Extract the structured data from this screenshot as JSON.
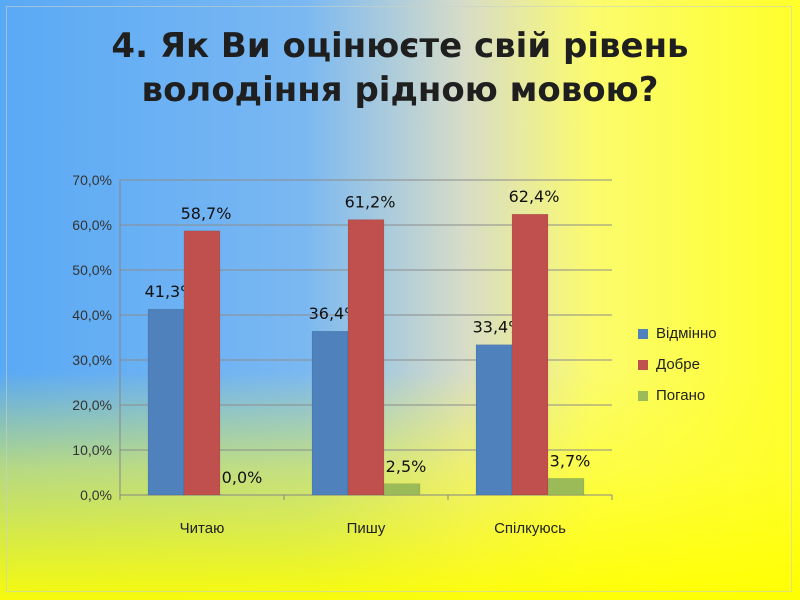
{
  "title_lines": [
    "4. Як Ви оцінюєте свій рівень",
    "володіння рідною мовою?"
  ],
  "chart_data": {
    "type": "bar",
    "categories": [
      "Читаю",
      "Пишу",
      "Спілкуюсь"
    ],
    "series": [
      {
        "name": "Відмінно",
        "color": "#4f81bd",
        "values": [
          41.3,
          36.4,
          33.4
        ],
        "labels": [
          "41,3%",
          "36,4%",
          "33,4%"
        ]
      },
      {
        "name": "Добре",
        "color": "#c0504d",
        "values": [
          58.7,
          61.2,
          62.4
        ],
        "labels": [
          "58,7%",
          "61,2%",
          "62,4%"
        ]
      },
      {
        "name": "Погано",
        "color": "#9bbb59",
        "values": [
          0.0,
          2.5,
          3.7
        ],
        "labels": [
          "0,0%",
          "2,5%",
          "3,7%"
        ]
      }
    ],
    "ylim": [
      0,
      70
    ],
    "yticks": [
      "0,0%",
      "10,0%",
      "20,0%",
      "30,0%",
      "40,0%",
      "50,0%",
      "60,0%",
      "70,0%"
    ],
    "grid": true,
    "legend_position": "right"
  }
}
